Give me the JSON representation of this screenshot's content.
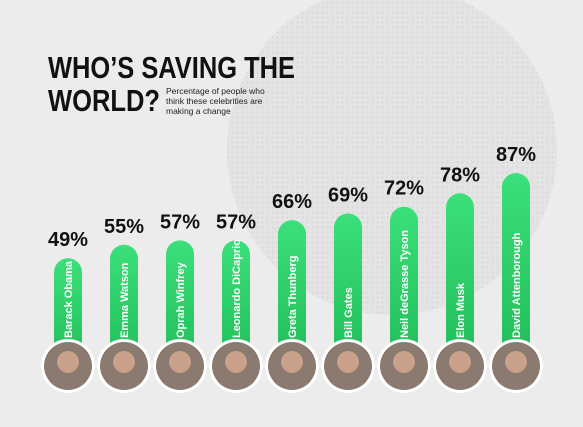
{
  "chart_data": {
    "type": "bar",
    "title": [
      "WHO’S SAVING THE",
      "WORLD?"
    ],
    "subtitle": "Percentage of people who think these celebrities are making a change",
    "categories": [
      "Barack Obama",
      "Emma Watson",
      "Oprah Winfrey",
      "Leonardo DiCaprio",
      "Greta Thunberg",
      "Bill Gates",
      "Neil deGrasse Tyson",
      "Elon Musk",
      "David Attenborough"
    ],
    "values": [
      49,
      55,
      57,
      57,
      66,
      69,
      72,
      78,
      87
    ],
    "value_labels": [
      "49%",
      "55%",
      "57%",
      "57%",
      "66%",
      "69%",
      "72%",
      "78%",
      "87%"
    ],
    "color": "#2bcf68"
  }
}
